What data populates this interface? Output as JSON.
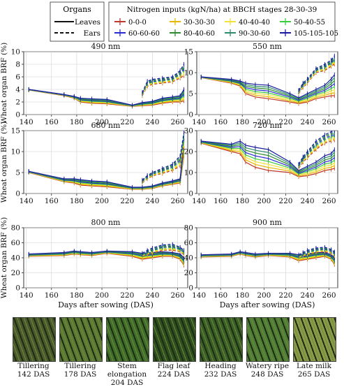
{
  "legend": {
    "organs_title": "Organs",
    "organs": [
      "Leaves",
      "Ears"
    ],
    "nitrogen_title": "Nitrogen inputs (kgN/ha) at BBCH stages 28-30-39",
    "treatments": [
      {
        "name": "0-0-0",
        "color": "#c0392b"
      },
      {
        "name": "30-30-30",
        "color": "#e8b800"
      },
      {
        "name": "40-40-40",
        "color": "#f2e23a"
      },
      {
        "name": "50-40-55",
        "color": "#3ccc3c"
      },
      {
        "name": "60-60-60",
        "color": "#2a2ad6"
      },
      {
        "name": "80-40-60",
        "color": "#2e8b2e"
      },
      {
        "name": "90-30-60",
        "color": "#2e8b6e"
      },
      {
        "name": "105-105-105",
        "color": "#1a1aa0"
      }
    ]
  },
  "photos": [
    {
      "stage": "Tillering",
      "das": "142 DAS",
      "color": "#4b5a2c"
    },
    {
      "stage": "Tillering",
      "das": "178 DAS",
      "color": "#5d7a35"
    },
    {
      "stage": "Stem elongation",
      "das": "204 DAS",
      "color": "#3f6e2a"
    },
    {
      "stage": "Flag leaf",
      "das": "224 DAS",
      "color": "#2e4f1f"
    },
    {
      "stage": "Heading",
      "das": "232 DAS",
      "color": "#3a6028"
    },
    {
      "stage": "Watery ripe",
      "das": "248 DAS",
      "color": "#4f7e36"
    },
    {
      "stage": "Late milk",
      "das": "265 DAS",
      "color": "#8a9a48"
    }
  ],
  "chart_data": [
    {
      "type": "line",
      "title": "490 nm",
      "ylabel": "Wheat organ BRF (%)",
      "xlabel": "",
      "xlim": [
        138,
        268
      ],
      "ylim": [
        0,
        10
      ],
      "yticks": [
        0,
        2,
        4,
        6,
        8,
        10
      ],
      "xticks": [
        140,
        160,
        180,
        200,
        220,
        240,
        260
      ],
      "grid": true,
      "leaves": {
        "x": [
          142,
          170,
          178,
          183,
          192,
          204,
          224,
          232,
          240,
          248,
          256,
          262,
          265
        ],
        "low": [
          3.9,
          3.0,
          2.6,
          2.0,
          1.8,
          1.7,
          1.3,
          1.4,
          1.5,
          1.8,
          2.0,
          2.0,
          2.2
        ],
        "high": [
          4.0,
          3.2,
          2.9,
          2.6,
          2.5,
          2.4,
          1.5,
          1.9,
          2.1,
          2.6,
          2.8,
          3.0,
          4.0
        ]
      },
      "ears": {
        "x": [
          232,
          236,
          240,
          248,
          256,
          262,
          265
        ],
        "low": [
          3.0,
          4.5,
          4.8,
          5.0,
          5.2,
          5.8,
          6.2
        ],
        "high": [
          3.5,
          5.3,
          5.6,
          5.8,
          6.0,
          7.0,
          8.0
        ]
      }
    },
    {
      "type": "line",
      "title": "550 nm",
      "ylabel": "",
      "xlabel": "",
      "xlim": [
        138,
        268
      ],
      "ylim": [
        0,
        15
      ],
      "yticks": [
        0,
        5,
        10,
        15
      ],
      "xticks": [
        140,
        160,
        180,
        200,
        220,
        240,
        260
      ],
      "grid": true,
      "leaves": {
        "x": [
          142,
          170,
          178,
          183,
          192,
          204,
          224,
          232,
          240,
          248,
          256,
          262,
          265
        ],
        "low": [
          8.8,
          7.5,
          6.8,
          5.0,
          4.2,
          3.8,
          3.0,
          2.6,
          3.0,
          3.8,
          4.2,
          4.5,
          4.5
        ],
        "high": [
          9.0,
          8.4,
          8.0,
          7.5,
          7.2,
          7.0,
          5.0,
          4.0,
          5.0,
          6.0,
          7.0,
          8.5,
          9.5
        ]
      },
      "ears": {
        "x": [
          232,
          236,
          240,
          248,
          256,
          262,
          265
        ],
        "low": [
          5.0,
          6.5,
          7.5,
          10.0,
          10.5,
          11.5,
          12.0
        ],
        "high": [
          5.8,
          7.5,
          8.5,
          11.0,
          12.0,
          13.0,
          14.0
        ]
      }
    },
    {
      "type": "line",
      "title": "680 nm",
      "ylabel": "Wheat organ BRF (%)",
      "xlabel": "",
      "xlim": [
        138,
        268
      ],
      "ylim": [
        0,
        15
      ],
      "yticks": [
        0,
        5,
        10,
        15
      ],
      "xticks": [
        140,
        160,
        180,
        200,
        220,
        240,
        260
      ],
      "grid": true,
      "leaves": {
        "x": [
          142,
          170,
          178,
          183,
          192,
          204,
          224,
          232,
          240,
          248,
          256,
          262,
          265
        ],
        "low": [
          5.0,
          2.8,
          2.5,
          2.0,
          1.8,
          1.6,
          1.0,
          1.0,
          1.2,
          1.8,
          2.2,
          2.5,
          9.0
        ],
        "high": [
          5.3,
          3.5,
          3.5,
          3.3,
          3.0,
          2.8,
          1.5,
          1.5,
          1.8,
          2.5,
          3.0,
          3.5,
          13.0
        ]
      },
      "ears": {
        "x": [
          232,
          236,
          240,
          248,
          256,
          262,
          265
        ],
        "low": [
          2.5,
          3.5,
          4.2,
          4.8,
          5.5,
          6.5,
          11.0
        ],
        "high": [
          3.2,
          4.3,
          5.0,
          6.0,
          7.0,
          9.0,
          14.5
        ]
      }
    },
    {
      "type": "line",
      "title": "720 nm",
      "ylabel": "",
      "xlabel": "",
      "xlim": [
        138,
        268
      ],
      "ylim": [
        0,
        30
      ],
      "yticks": [
        0,
        10,
        20,
        30
      ],
      "xticks": [
        140,
        160,
        180,
        200,
        220,
        240,
        260
      ],
      "grid": true,
      "leaves": {
        "x": [
          142,
          170,
          178,
          183,
          192,
          204,
          224,
          232,
          240,
          248,
          256,
          262,
          265
        ],
        "low": [
          24.0,
          20.0,
          19.0,
          15.0,
          12.5,
          11.0,
          10.0,
          8.0,
          8.5,
          9.5,
          11.0,
          11.5,
          12.0
        ],
        "high": [
          25.0,
          23.5,
          25.0,
          23.0,
          22.0,
          21.0,
          15.0,
          11.0,
          13.0,
          15.0,
          18.0,
          19.0,
          21.0
        ]
      },
      "ears": {
        "x": [
          232,
          236,
          240,
          248,
          256,
          262,
          265
        ],
        "low": [
          12.0,
          15.0,
          17.0,
          21.0,
          24.0,
          25.0,
          25.5
        ],
        "high": [
          14.0,
          17.5,
          20.0,
          25.0,
          28.0,
          29.5,
          30.0
        ]
      }
    },
    {
      "type": "line",
      "title": "800 nm",
      "ylabel": "Wheat organ BRF (%)",
      "xlabel": "Days after sowing (DAS)",
      "xlim": [
        138,
        268
      ],
      "ylim": [
        0,
        80
      ],
      "yticks": [
        0,
        20,
        40,
        60,
        80
      ],
      "xticks": [
        140,
        160,
        180,
        200,
        220,
        240,
        260
      ],
      "grid": true,
      "leaves": {
        "x": [
          142,
          170,
          178,
          183,
          192,
          204,
          224,
          232,
          240,
          248,
          256,
          262,
          265
        ],
        "low": [
          42.0,
          43.0,
          45.0,
          44.0,
          43.0,
          46.0,
          42.0,
          38.0,
          40.0,
          42.0,
          42.0,
          38.0,
          30.0
        ],
        "high": [
          45.0,
          47.0,
          49.0,
          48.0,
          47.0,
          49.0,
          48.0,
          46.0,
          47.0,
          48.0,
          47.0,
          45.0,
          40.0
        ]
      },
      "ears": {
        "x": [
          232,
          236,
          240,
          248,
          256,
          262,
          265
        ],
        "low": [
          42.0,
          44.0,
          46.0,
          50.0,
          50.0,
          48.0,
          44.0
        ],
        "high": [
          46.0,
          50.0,
          53.0,
          57.0,
          58.0,
          54.0,
          50.0
        ]
      }
    },
    {
      "type": "line",
      "title": "900 nm",
      "ylabel": "",
      "xlabel": "Days after sowing (DAS)",
      "xlim": [
        138,
        268
      ],
      "ylim": [
        0,
        80
      ],
      "yticks": [
        0,
        20,
        40,
        60,
        80
      ],
      "xticks": [
        140,
        160,
        180,
        200,
        220,
        240,
        260
      ],
      "grid": true,
      "leaves": {
        "x": [
          142,
          170,
          178,
          183,
          192,
          204,
          224,
          232,
          240,
          248,
          256,
          262,
          265
        ],
        "low": [
          41.0,
          42.0,
          45.0,
          43.0,
          41.0,
          43.0,
          41.0,
          36.0,
          38.0,
          40.0,
          42.0,
          38.0,
          31.0
        ],
        "high": [
          44.0,
          45.0,
          48.0,
          47.0,
          45.0,
          46.0,
          46.0,
          44.0,
          45.0,
          47.0,
          47.0,
          44.0,
          40.0
        ]
      },
      "ears": {
        "x": [
          232,
          236,
          240,
          248,
          256,
          262,
          265
        ],
        "low": [
          40.0,
          42.0,
          44.0,
          47.0,
          48.0,
          46.0,
          42.0
        ],
        "high": [
          44.0,
          47.0,
          50.0,
          53.0,
          54.0,
          51.0,
          48.0
        ]
      }
    }
  ]
}
